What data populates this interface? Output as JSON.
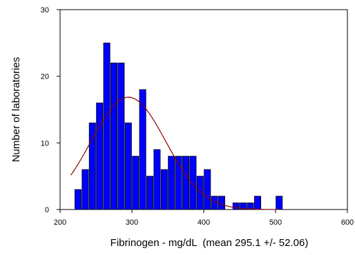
{
  "chart_data": {
    "type": "bar",
    "xlabel": "Fibrinogen - mg/dL  (mean 295.1 +/- 52.06)",
    "ylabel": "Number of laboratories",
    "xlim": [
      200,
      600
    ],
    "ylim": [
      0,
      30
    ],
    "xticks": [
      200,
      300,
      400,
      500,
      600
    ],
    "yticks": [
      0,
      10,
      20,
      30
    ],
    "bin_width": 10,
    "bar_color": "#0000ff",
    "bar_edge_color": "#000000",
    "curve_color": "#8b0000",
    "grid": false,
    "bars": [
      {
        "x": 220,
        "value": 3
      },
      {
        "x": 230,
        "value": 6
      },
      {
        "x": 240,
        "value": 13
      },
      {
        "x": 250,
        "value": 16
      },
      {
        "x": 260,
        "value": 25
      },
      {
        "x": 270,
        "value": 22
      },
      {
        "x": 280,
        "value": 22
      },
      {
        "x": 290,
        "value": 13
      },
      {
        "x": 300,
        "value": 8
      },
      {
        "x": 310,
        "value": 18
      },
      {
        "x": 320,
        "value": 5
      },
      {
        "x": 330,
        "value": 9
      },
      {
        "x": 340,
        "value": 6
      },
      {
        "x": 350,
        "value": 8
      },
      {
        "x": 360,
        "value": 8
      },
      {
        "x": 370,
        "value": 8
      },
      {
        "x": 380,
        "value": 8
      },
      {
        "x": 390,
        "value": 5
      },
      {
        "x": 400,
        "value": 6
      },
      {
        "x": 410,
        "value": 2
      },
      {
        "x": 420,
        "value": 2
      },
      {
        "x": 440,
        "value": 1
      },
      {
        "x": 450,
        "value": 1
      },
      {
        "x": 460,
        "value": 1
      },
      {
        "x": 470,
        "value": 2
      },
      {
        "x": 500,
        "value": 2
      }
    ],
    "normal_curve": {
      "mean": 295.1,
      "sd": 52.06,
      "x_start": 215,
      "x_end": 505
    }
  }
}
